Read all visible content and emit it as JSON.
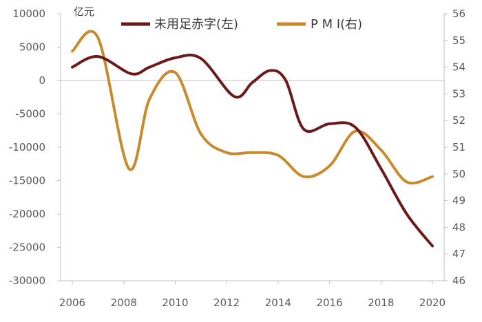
{
  "chart_data": {
    "type": "line",
    "x_ticks": [
      "2006",
      "2008",
      "2010",
      "2012",
      "2014",
      "2016",
      "2018",
      "2020"
    ],
    "y_left": {
      "unit": "亿元",
      "ylim": [
        -30000,
        10000
      ],
      "ticks": [
        "10000",
        "5000",
        "0",
        "-5000",
        "-10000",
        "-15000",
        "-20000",
        "-25000",
        "-30000"
      ]
    },
    "y_right": {
      "ylim": [
        46,
        56
      ],
      "ticks": [
        "56",
        "55",
        "54",
        "53",
        "52",
        "51",
        "50",
        "49",
        "48",
        "47",
        "46"
      ]
    },
    "legend": {
      "placement": "top"
    },
    "grid": false,
    "series": [
      {
        "name": "未用足赤字(左)",
        "axis": "left",
        "color": "#6b1a1a",
        "points": [
          [
            2006.0,
            2000
          ],
          [
            2007.0,
            3600
          ],
          [
            2008.3,
            1000
          ],
          [
            2009.0,
            2000
          ],
          [
            2010.0,
            3400
          ],
          [
            2011.0,
            3300
          ],
          [
            2012.3,
            -2400
          ],
          [
            2013.0,
            -300
          ],
          [
            2013.7,
            1500
          ],
          [
            2014.3,
            0
          ],
          [
            2015.0,
            -7300
          ],
          [
            2016.0,
            -6500
          ],
          [
            2017.0,
            -7000
          ],
          [
            2018.0,
            -13200
          ],
          [
            2019.0,
            -20000
          ],
          [
            2020.0,
            -24800
          ]
        ]
      },
      {
        "name": "P M I(右)",
        "axis": "right",
        "color": "#c98a2b",
        "points": [
          [
            2006.0,
            54.6
          ],
          [
            2007.0,
            55.1
          ],
          [
            2008.2,
            50.2
          ],
          [
            2009.0,
            52.8
          ],
          [
            2010.0,
            53.8
          ],
          [
            2011.0,
            51.5
          ],
          [
            2012.0,
            50.8
          ],
          [
            2013.0,
            50.8
          ],
          [
            2014.0,
            50.7
          ],
          [
            2015.0,
            49.9
          ],
          [
            2016.0,
            50.3
          ],
          [
            2017.0,
            51.6
          ],
          [
            2018.0,
            50.9
          ],
          [
            2019.0,
            49.7
          ],
          [
            2020.0,
            49.9
          ]
        ]
      }
    ]
  }
}
